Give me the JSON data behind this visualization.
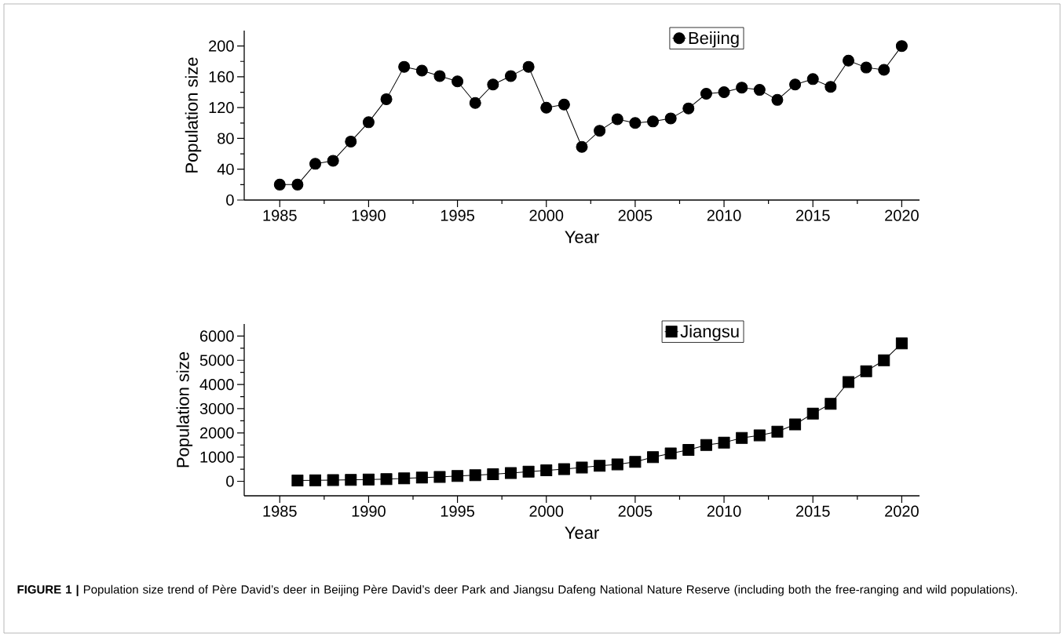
{
  "chart_data": [
    {
      "type": "line",
      "xlabel": "Year",
      "ylabel": "Population size",
      "marker": "circle",
      "line_style": "solid",
      "legend": "top right",
      "grid": false,
      "x": [
        1985,
        1986,
        1987,
        1988,
        1989,
        1990,
        1991,
        1992,
        1993,
        1994,
        1995,
        1996,
        1997,
        1998,
        1999,
        2000,
        2001,
        2002,
        2003,
        2004,
        2005,
        2006,
        2007,
        2008,
        2009,
        2010,
        2011,
        2012,
        2013,
        2014,
        2015,
        2016,
        2017,
        2018,
        2019,
        2020
      ],
      "series": [
        {
          "name": "Beijing",
          "color": "#000000",
          "values": [
            20,
            20,
            47,
            51,
            76,
            101,
            131,
            173,
            168,
            161,
            154,
            126,
            150,
            161,
            173,
            120,
            124,
            69,
            90,
            105,
            100,
            102,
            106,
            119,
            138,
            140,
            146,
            143,
            130,
            150,
            157,
            147,
            181,
            172,
            169,
            200
          ]
        }
      ],
      "xlim": [
        1983,
        2021
      ],
      "xticks": [
        1985,
        1990,
        1995,
        2000,
        2005,
        2010,
        2015,
        2020
      ],
      "ylim": [
        0,
        220
      ],
      "yticks": [
        0,
        40,
        80,
        120,
        160,
        200
      ]
    },
    {
      "type": "line",
      "xlabel": "Year",
      "ylabel": "Population size",
      "marker": "square",
      "line_style": "solid",
      "legend": "top right",
      "grid": false,
      "x": [
        1986,
        1987,
        1988,
        1989,
        1990,
        1991,
        1992,
        1993,
        1994,
        1995,
        1996,
        1997,
        1998,
        1999,
        2000,
        2001,
        2002,
        2003,
        2004,
        2005,
        2006,
        2007,
        2008,
        2009,
        2010,
        2011,
        2012,
        2013,
        2014,
        2015,
        2016,
        2017,
        2018,
        2019,
        2020
      ],
      "series": [
        {
          "name": "Jiangsu",
          "color": "#000000",
          "values": [
            30,
            40,
            50,
            60,
            70,
            90,
            120,
            150,
            180,
            220,
            250,
            290,
            340,
            400,
            450,
            500,
            570,
            640,
            700,
            800,
            1000,
            1150,
            1300,
            1500,
            1600,
            1790,
            1900,
            2050,
            2350,
            2800,
            3200,
            4100,
            4550,
            5000,
            5700
          ]
        }
      ],
      "xlim": [
        1983,
        2021
      ],
      "xticks": [
        1985,
        1990,
        1995,
        2000,
        2005,
        2010,
        2015,
        2020
      ],
      "ylim": [
        -600,
        6500
      ],
      "yticks": [
        0,
        1000,
        2000,
        3000,
        4000,
        5000,
        6000
      ],
      "annotations": [
        "**FIGURE 1 |** Population size trend of Père David’s deer in Beijing Père David’s deer Park and Jiangsu Dafeng National Nature Reserve (including both the free-ranging and wild populations)."
      ]
    }
  ]
}
